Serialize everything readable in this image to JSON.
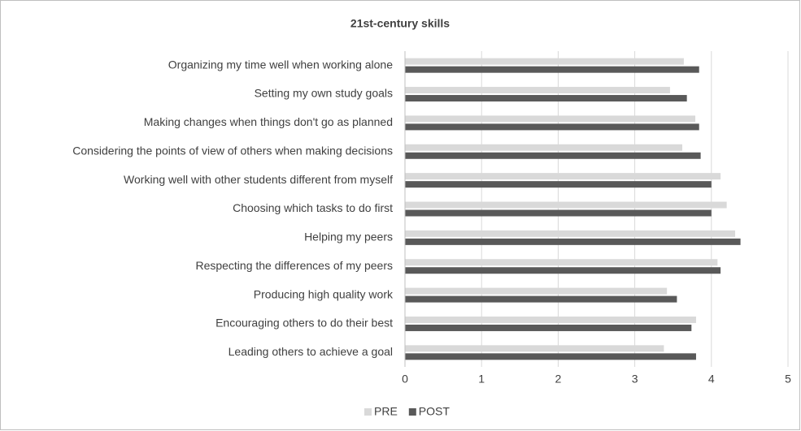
{
  "chart_data": {
    "type": "bar",
    "orientation": "horizontal",
    "title": "21st-century skills",
    "categories": [
      "Organizing my time well when working alone",
      "Setting my own study goals",
      "Making changes when things don't go as planned",
      "Considering the points of view of others when making decisions",
      "Working well with other students different from myself",
      "Choosing which tasks to do first",
      "Helping my peers",
      "Respecting the differences of my peers",
      "Producing high quality work",
      "Encouraging others to do their best",
      "Leading others to achieve a goal"
    ],
    "series": [
      {
        "name": "PRE",
        "color": "#d9d9d9",
        "values": [
          3.64,
          3.46,
          3.79,
          3.62,
          4.12,
          4.2,
          4.31,
          4.08,
          3.42,
          3.8,
          3.38
        ]
      },
      {
        "name": "POST",
        "color": "#595959",
        "values": [
          3.84,
          3.68,
          3.84,
          3.86,
          4.0,
          4.0,
          4.38,
          4.12,
          3.55,
          3.74,
          3.8
        ]
      }
    ],
    "xlim": [
      0,
      5
    ],
    "xticks": [
      0,
      1,
      2,
      3,
      4,
      5
    ],
    "grid": true,
    "legend": "bottom"
  }
}
